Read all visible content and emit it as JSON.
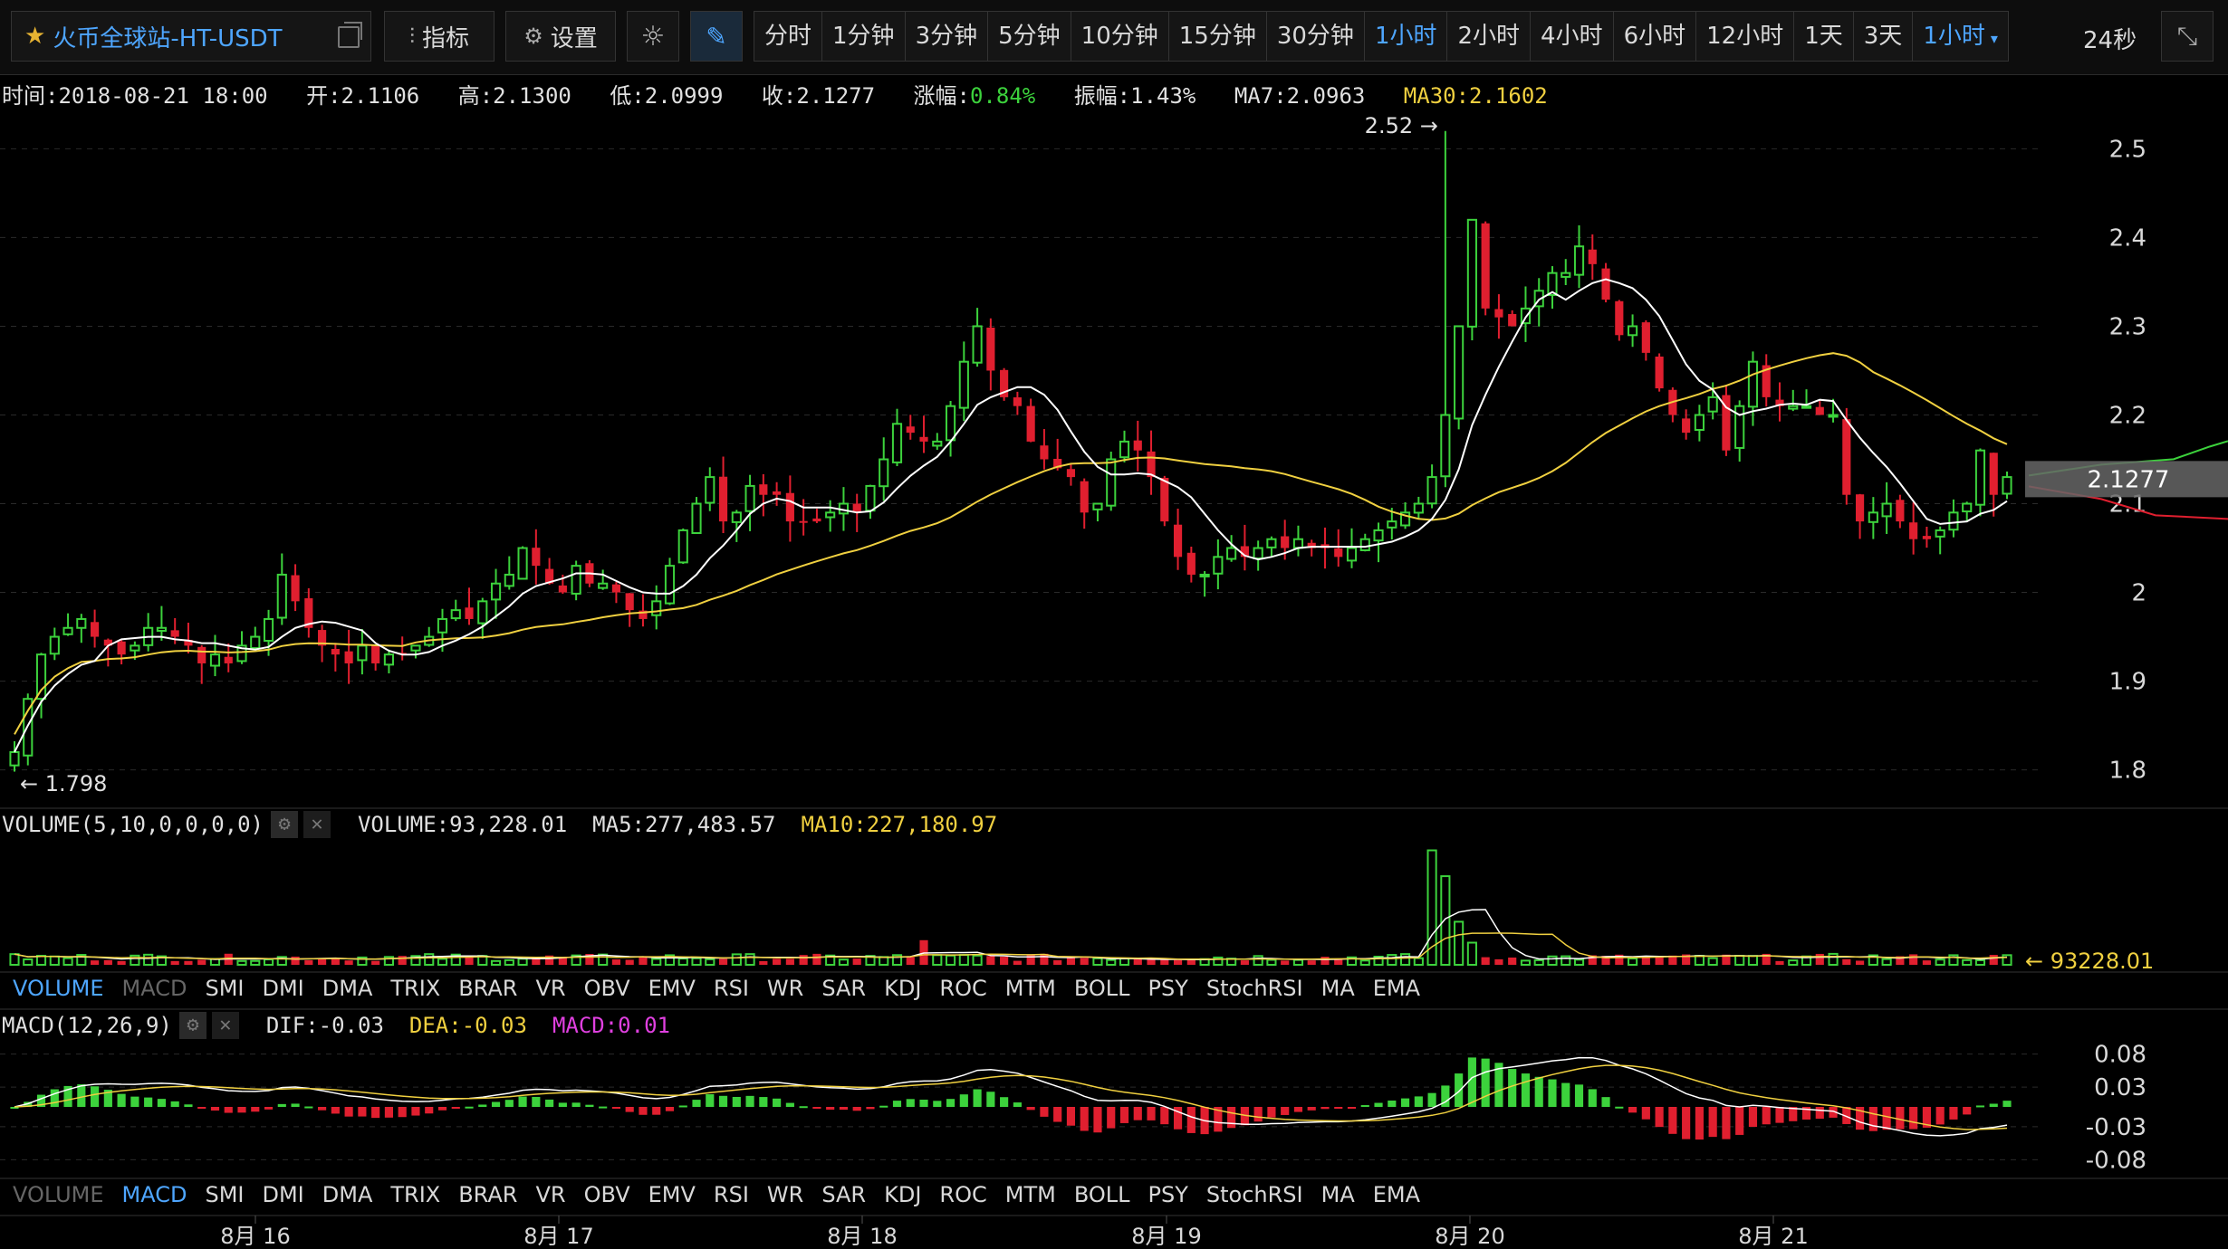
{
  "toolbar": {
    "symbol": "火币全球站-HT-USDT",
    "indicators_label": "指标",
    "settings_label": "设置",
    "intervals": [
      "分时",
      "1分钟",
      "3分钟",
      "5分钟",
      "10分钟",
      "15分钟",
      "30分钟",
      "1小时",
      "2小时",
      "4小时",
      "6小时",
      "12小时",
      "1天",
      "3天"
    ],
    "active_interval": "1小时",
    "dropdown_label": "1小时",
    "timer": "24秒"
  },
  "info": {
    "time": "时间:2018-08-21 18:00",
    "open": "开:2.1106",
    "high": "高:2.1300",
    "low": "低:2.0999",
    "close": "收:2.1277",
    "change_label": "涨幅:",
    "change_value": "0.84%",
    "amplitude": "振幅:1.43%",
    "ma7": "MA7:2.0963",
    "ma30": "MA30:2.1602"
  },
  "volume_panel": {
    "title": "VOLUME(5,10,0,0,0,0)",
    "volume": "VOLUME:93,228.01",
    "ma5": "MA5:277,483.57",
    "ma10": "MA10:227,180.97",
    "last_label": "93228.01"
  },
  "macd_panel": {
    "title": "MACD(12,26,9)",
    "dif": "DIF:-0.03",
    "dea": "DEA:-0.03",
    "macd": "MACD:0.01"
  },
  "indicator_tabs": [
    "VOLUME",
    "MACD",
    "SMI",
    "DMI",
    "DMA",
    "TRIX",
    "BRAR",
    "VR",
    "OBV",
    "EMV",
    "RSI",
    "WR",
    "SAR",
    "KDJ",
    "ROC",
    "MTM",
    "BOLL",
    "PSY",
    "StochRSI",
    "MA",
    "EMA"
  ],
  "colors": {
    "up": "#3cd23c",
    "down": "#e01f2f",
    "ma7": "#ffffff",
    "ma30": "#f0d040",
    "accent": "#4ea6ff"
  },
  "chart_data": {
    "type": "candlestick",
    "title": "",
    "price_axis": {
      "ticks": [
        "2.5",
        "2.4",
        "2.3",
        "2.2",
        "2.1",
        "2",
        "1.9",
        "1.8"
      ],
      "range": [
        1.77,
        2.53
      ]
    },
    "time_axis": {
      "labels": [
        "8月 16",
        "8月 17",
        "8月 18",
        "8月 19",
        "8月 20",
        "8月 21"
      ]
    },
    "max_label": "2.52",
    "min_label": "1.798",
    "last_price": "2.1277",
    "close": [
      1.82,
      1.88,
      1.93,
      1.95,
      1.96,
      1.97,
      1.95,
      1.94,
      1.93,
      1.94,
      1.96,
      1.96,
      1.95,
      1.94,
      1.92,
      1.93,
      1.92,
      1.94,
      1.95,
      1.97,
      2.02,
      1.99,
      1.96,
      1.94,
      1.93,
      1.92,
      1.94,
      1.92,
      1.93,
      1.93,
      1.94,
      1.95,
      1.97,
      1.98,
      1.97,
      1.99,
      2.01,
      2.02,
      2.05,
      2.03,
      2.01,
      2.0,
      2.03,
      2.01,
      2.01,
      2.0,
      1.98,
      1.97,
      1.99,
      2.03,
      2.07,
      2.1,
      2.13,
      2.08,
      2.09,
      2.12,
      2.11,
      2.11,
      2.08,
      2.08,
      2.08,
      2.09,
      2.1,
      2.09,
      2.12,
      2.15,
      2.19,
      2.18,
      2.17,
      2.17,
      2.21,
      2.26,
      2.3,
      2.25,
      2.22,
      2.21,
      2.17,
      2.15,
      2.14,
      2.13,
      2.09,
      2.1,
      2.15,
      2.17,
      2.16,
      2.13,
      2.08,
      2.04,
      2.02,
      2.02,
      2.04,
      2.05,
      2.04,
      2.05,
      2.06,
      2.05,
      2.06,
      2.05,
      2.05,
      2.04,
      2.05,
      2.06,
      2.07,
      2.08,
      2.09,
      2.1,
      2.13,
      2.2,
      2.3,
      2.42,
      2.32,
      2.31,
      2.3,
      2.32,
      2.34,
      2.36,
      2.36,
      2.39,
      2.37,
      2.33,
      2.29,
      2.3,
      2.27,
      2.23,
      2.2,
      2.18,
      2.2,
      2.22,
      2.16,
      2.21,
      2.26,
      2.22,
      2.21,
      2.21,
      2.21,
      2.2,
      2.2,
      2.11,
      2.08,
      2.09,
      2.1,
      2.08,
      2.06,
      2.06,
      2.07,
      2.09,
      2.1,
      2.16,
      2.11,
      2.13
    ],
    "series": [
      {
        "name": "MA7"
      },
      {
        "name": "MA30"
      }
    ],
    "volume_scale": [
      0,
      1.0
    ],
    "macd_axis": {
      "ticks": [
        "0.08",
        "0.03",
        "-0.03",
        "-0.08"
      ]
    }
  }
}
